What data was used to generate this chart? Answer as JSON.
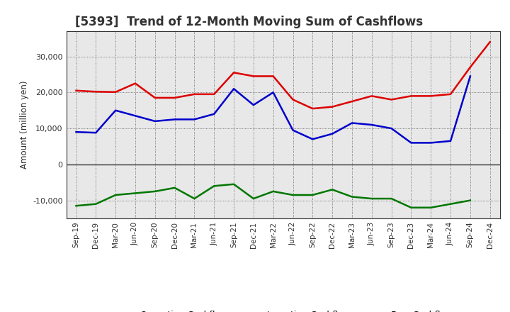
{
  "title": "[5393]  Trend of 12-Month Moving Sum of Cashflows",
  "ylabel": "Amount (million yen)",
  "x_labels": [
    "Sep-19",
    "Dec-19",
    "Mar-20",
    "Jun-20",
    "Sep-20",
    "Dec-20",
    "Mar-21",
    "Jun-21",
    "Sep-21",
    "Dec-21",
    "Mar-22",
    "Jun-22",
    "Sep-22",
    "Dec-22",
    "Mar-23",
    "Jun-23",
    "Sep-23",
    "Dec-23",
    "Mar-24",
    "Jun-24",
    "Sep-24",
    "Dec-24"
  ],
  "operating": [
    20500,
    20200,
    20100,
    22500,
    18500,
    18500,
    19500,
    19500,
    25500,
    24500,
    24500,
    18000,
    15500,
    16000,
    17500,
    19000,
    18000,
    19000,
    19000,
    19500,
    27000,
    34000
  ],
  "investing": [
    -11500,
    -11000,
    -8500,
    -8000,
    -7500,
    -6500,
    -9500,
    -6000,
    -5500,
    -9500,
    -7500,
    -8500,
    -8500,
    -7000,
    -9000,
    -9500,
    -9500,
    -12000,
    -12000,
    -11000,
    -10000,
    null
  ],
  "free": [
    9000,
    8800,
    15000,
    13500,
    12000,
    12500,
    12500,
    14000,
    21000,
    16500,
    20000,
    9500,
    7000,
    8500,
    11500,
    11000,
    10000,
    6000,
    6000,
    6500,
    24500,
    null
  ],
  "ylim": [
    -15000,
    37000
  ],
  "yticks": [
    -10000,
    0,
    10000,
    20000,
    30000
  ],
  "operating_color": "#dd0000",
  "investing_color": "#007700",
  "free_color": "#0000cc",
  "plot_bg_color": "#e8e8e8",
  "fig_bg_color": "#ffffff",
  "grid_color": "#555555",
  "linewidth": 1.8,
  "title_fontsize": 12,
  "title_color": "#333333"
}
